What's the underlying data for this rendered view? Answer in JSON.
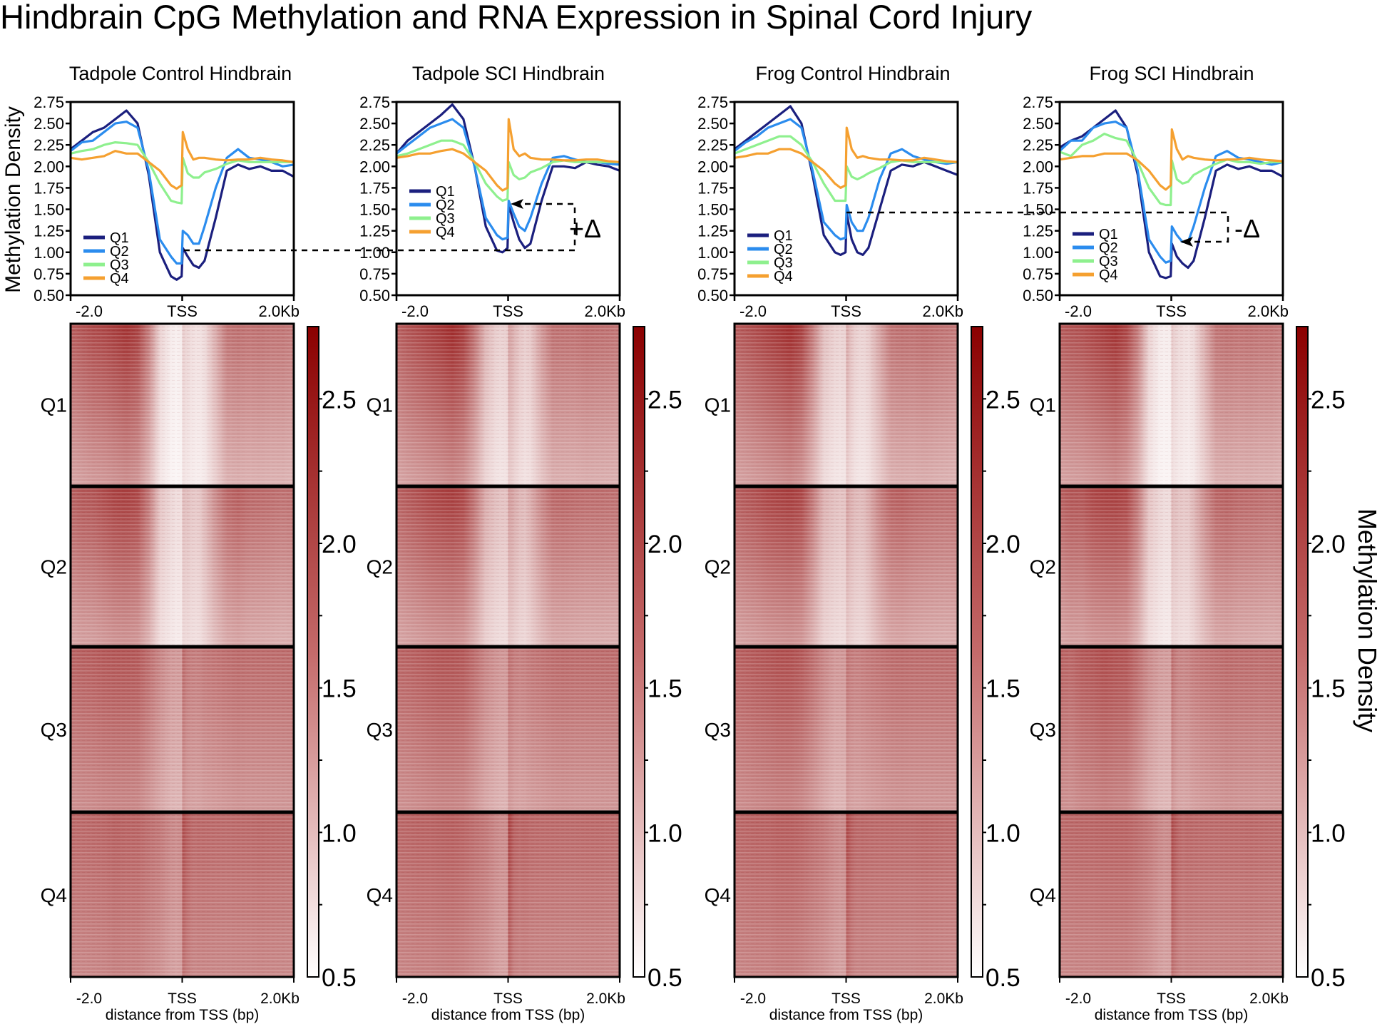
{
  "title": "Hindbrain CpG Methylation and RNA Expression in Spinal Cord Injury",
  "y_axis_label": "Methylation Density",
  "colorbar_label": "Methylation Density",
  "x_ticks": [
    "-2.0",
    "TSS",
    "2.0Kb"
  ],
  "heatmap_xlabel": "distance from TSS (bp)",
  "colorbar_ticks": [
    2.5,
    2.0,
    1.5,
    1.0,
    0.5
  ],
  "colorbar_tick_labels": [
    "2.5",
    "2.0",
    "1.5",
    "1.0",
    "0.5"
  ],
  "colorbar_range": [
    0.5,
    2.75
  ],
  "colorbar_colors": {
    "low": "#ffffff",
    "high": "#8b0000"
  },
  "quartiles": [
    "Q1",
    "Q2",
    "Q3",
    "Q4"
  ],
  "colors": {
    "Q1": "#1b1f7e",
    "Q2": "#2b8cee",
    "Q3": "#8ef08e",
    "Q4": "#f5a030"
  },
  "annotations": {
    "plus_delta": "+Δ",
    "minus_delta": "-Δ"
  },
  "chart_data": [
    {
      "type": "line",
      "title": "Tadpole Control Hindbrain",
      "xlabel": "",
      "ylabel": "Methylation Density",
      "ylim": [
        0.5,
        2.75
      ],
      "yticks": [
        "0.50",
        "0.75",
        "1.00",
        "1.25",
        "1.50",
        "1.75",
        "2.00",
        "2.25",
        "2.50",
        "2.75"
      ],
      "legend": "bottom-left",
      "x": [
        -2000,
        -1800,
        -1600,
        -1400,
        -1200,
        -1000,
        -800,
        -600,
        -400,
        -200,
        -100,
        -10,
        10,
        100,
        200,
        300,
        400,
        600,
        800,
        1000,
        1200,
        1400,
        1600,
        1800,
        2000
      ],
      "series": [
        {
          "name": "Q1",
          "values": [
            2.2,
            2.3,
            2.4,
            2.45,
            2.55,
            2.65,
            2.5,
            1.9,
            1.0,
            0.72,
            0.68,
            0.72,
            1.05,
            0.95,
            0.85,
            0.82,
            0.9,
            1.4,
            1.95,
            2.02,
            1.97,
            2.0,
            1.95,
            1.95,
            1.88
          ]
        },
        {
          "name": "Q2",
          "values": [
            2.18,
            2.28,
            2.3,
            2.4,
            2.5,
            2.52,
            2.45,
            1.95,
            1.15,
            0.95,
            0.87,
            0.87,
            1.25,
            1.2,
            1.1,
            1.1,
            1.3,
            1.75,
            2.1,
            2.2,
            2.1,
            2.08,
            2.05,
            2.0,
            2.02
          ]
        },
        {
          "name": "Q3",
          "values": [
            2.15,
            2.18,
            2.2,
            2.25,
            2.28,
            2.27,
            2.25,
            2.05,
            1.8,
            1.6,
            1.58,
            1.57,
            2.1,
            1.92,
            1.87,
            1.87,
            1.93,
            1.97,
            2.03,
            2.07,
            2.05,
            2.05,
            2.05,
            2.05,
            2.05
          ]
        },
        {
          "name": "Q4",
          "values": [
            2.1,
            2.08,
            2.1,
            2.12,
            2.18,
            2.15,
            2.15,
            2.05,
            1.95,
            1.78,
            1.74,
            1.78,
            2.4,
            2.2,
            2.08,
            2.1,
            2.1,
            2.08,
            2.07,
            2.08,
            2.08,
            2.1,
            2.08,
            2.07,
            2.05
          ]
        }
      ]
    },
    {
      "type": "line",
      "title": "Tadpole SCI Hindbrain",
      "xlabel": "",
      "ylabel": "",
      "ylim": [
        0.5,
        2.75
      ],
      "yticks": [
        "0.50",
        "0.75",
        "1.00",
        "1.25",
        "1.50",
        "1.75",
        "2.00",
        "2.25",
        "2.50",
        "2.75"
      ],
      "legend": "left",
      "x": [
        -2000,
        -1800,
        -1600,
        -1400,
        -1200,
        -1000,
        -800,
        -600,
        -400,
        -200,
        -100,
        -10,
        10,
        100,
        200,
        300,
        400,
        600,
        800,
        1000,
        1200,
        1400,
        1600,
        1800,
        2000
      ],
      "series": [
        {
          "name": "Q1",
          "values": [
            2.15,
            2.3,
            2.4,
            2.5,
            2.6,
            2.72,
            2.55,
            2.0,
            1.3,
            1.02,
            1.0,
            1.05,
            1.55,
            1.35,
            1.15,
            1.05,
            1.1,
            1.6,
            2.0,
            2.0,
            1.98,
            2.05,
            2.02,
            2.0,
            1.95
          ]
        },
        {
          "name": "Q2",
          "values": [
            2.15,
            2.25,
            2.35,
            2.45,
            2.5,
            2.55,
            2.45,
            2.0,
            1.4,
            1.2,
            1.15,
            1.17,
            1.6,
            1.45,
            1.3,
            1.25,
            1.4,
            1.8,
            2.1,
            2.12,
            2.08,
            2.05,
            2.05,
            2.03,
            2.02
          ]
        },
        {
          "name": "Q3",
          "values": [
            2.12,
            2.15,
            2.2,
            2.25,
            2.3,
            2.3,
            2.25,
            2.05,
            1.8,
            1.65,
            1.6,
            1.62,
            2.05,
            1.9,
            1.85,
            1.87,
            1.93,
            1.98,
            2.05,
            2.07,
            2.05,
            2.05,
            2.05,
            2.05,
            2.05
          ]
        },
        {
          "name": "Q4",
          "values": [
            2.1,
            2.12,
            2.15,
            2.15,
            2.18,
            2.2,
            2.15,
            2.05,
            1.95,
            1.78,
            1.72,
            1.75,
            2.55,
            2.2,
            2.12,
            2.15,
            2.1,
            2.08,
            2.08,
            2.07,
            2.07,
            2.08,
            2.08,
            2.06,
            2.05
          ]
        }
      ]
    },
    {
      "type": "line",
      "title": "Frog Control Hindbrain",
      "xlabel": "",
      "ylabel": "",
      "ylim": [
        0.5,
        2.75
      ],
      "yticks": [
        "0.50",
        "0.75",
        "1.00",
        "1.25",
        "1.50",
        "1.75",
        "2.00",
        "2.25",
        "2.50",
        "2.75"
      ],
      "legend": "bottom-left",
      "x": [
        -2000,
        -1800,
        -1600,
        -1400,
        -1200,
        -1000,
        -800,
        -600,
        -400,
        -200,
        -100,
        -10,
        10,
        100,
        200,
        300,
        400,
        600,
        800,
        1000,
        1200,
        1400,
        1600,
        1800,
        2000
      ],
      "series": [
        {
          "name": "Q1",
          "values": [
            2.2,
            2.3,
            2.4,
            2.5,
            2.6,
            2.7,
            2.5,
            1.9,
            1.2,
            1.0,
            0.97,
            1.0,
            1.45,
            1.15,
            1.0,
            0.97,
            1.05,
            1.5,
            1.95,
            2.02,
            2.0,
            2.05,
            2.0,
            1.95,
            1.9
          ]
        },
        {
          "name": "Q2",
          "values": [
            2.18,
            2.28,
            2.35,
            2.45,
            2.5,
            2.55,
            2.45,
            1.95,
            1.35,
            1.2,
            1.15,
            1.17,
            1.55,
            1.35,
            1.25,
            1.25,
            1.4,
            1.85,
            2.15,
            2.2,
            2.12,
            2.08,
            2.05,
            2.03,
            2.05
          ]
        },
        {
          "name": "Q3",
          "values": [
            2.15,
            2.2,
            2.25,
            2.3,
            2.35,
            2.35,
            2.25,
            2.05,
            1.8,
            1.6,
            1.6,
            1.6,
            2.0,
            1.88,
            1.85,
            1.88,
            1.92,
            1.98,
            2.05,
            2.07,
            2.05,
            2.05,
            2.05,
            2.05,
            2.05
          ]
        },
        {
          "name": "Q4",
          "values": [
            2.1,
            2.12,
            2.15,
            2.15,
            2.2,
            2.2,
            2.15,
            2.05,
            1.95,
            1.8,
            1.75,
            1.78,
            2.45,
            2.2,
            2.1,
            2.12,
            2.1,
            2.08,
            2.08,
            2.07,
            2.07,
            2.1,
            2.08,
            2.06,
            2.05
          ]
        }
      ]
    },
    {
      "type": "line",
      "title": "Frog SCI Hindbrain",
      "xlabel": "",
      "ylabel": "",
      "ylim": [
        0.5,
        2.75
      ],
      "yticks": [
        "0.50",
        "0.75",
        "1.00",
        "1.25",
        "1.50",
        "1.75",
        "2.00",
        "2.25",
        "2.50",
        "2.75"
      ],
      "legend": "bottom-left",
      "x": [
        -2000,
        -1800,
        -1600,
        -1400,
        -1200,
        -1000,
        -800,
        -600,
        -400,
        -200,
        -100,
        -10,
        10,
        100,
        200,
        300,
        400,
        600,
        800,
        1000,
        1200,
        1400,
        1600,
        1800,
        2000
      ],
      "series": [
        {
          "name": "Q1",
          "values": [
            2.22,
            2.3,
            2.35,
            2.45,
            2.55,
            2.65,
            2.45,
            1.9,
            1.0,
            0.72,
            0.7,
            0.72,
            1.1,
            0.95,
            0.87,
            0.82,
            0.9,
            1.4,
            1.95,
            2.02,
            1.97,
            2.0,
            1.95,
            1.95,
            1.88
          ]
        },
        {
          "name": "Q2",
          "values": [
            2.18,
            2.3,
            2.3,
            2.45,
            2.5,
            2.52,
            2.45,
            1.95,
            1.15,
            0.95,
            0.88,
            0.9,
            1.3,
            1.2,
            1.12,
            1.12,
            1.3,
            1.75,
            2.12,
            2.18,
            2.1,
            2.08,
            2.05,
            2.02,
            2.05
          ]
        },
        {
          "name": "Q3",
          "values": [
            2.17,
            2.12,
            2.25,
            2.3,
            2.38,
            2.33,
            2.3,
            2.05,
            1.75,
            1.57,
            1.55,
            1.55,
            2.07,
            1.85,
            1.8,
            1.82,
            1.9,
            1.97,
            2.03,
            2.08,
            2.05,
            2.05,
            2.03,
            2.05,
            2.05
          ]
        },
        {
          "name": "Q4",
          "values": [
            2.08,
            2.1,
            2.12,
            2.12,
            2.15,
            2.15,
            2.15,
            2.07,
            1.95,
            1.78,
            1.73,
            1.78,
            2.43,
            2.2,
            2.08,
            2.12,
            2.1,
            2.08,
            2.07,
            2.08,
            2.08,
            2.1,
            2.08,
            2.07,
            2.06
          ]
        }
      ]
    }
  ]
}
